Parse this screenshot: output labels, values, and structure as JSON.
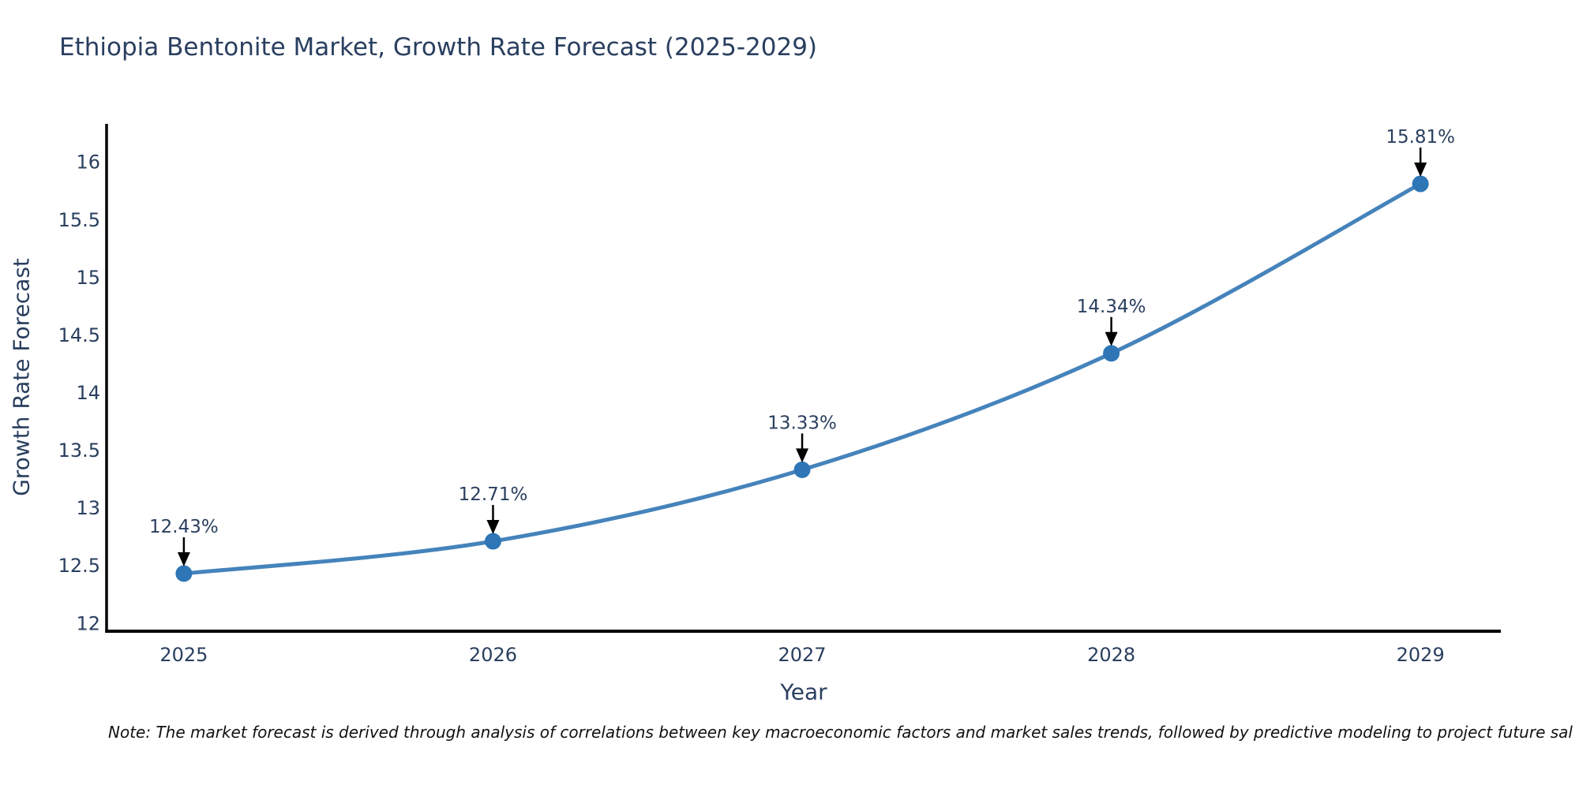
{
  "page": {
    "note": "Note: The market forecast is derived through analysis of correlations between key macroeconomic factors and market sales trends, followed by predictive modeling to project future sal"
  },
  "chart_data": {
    "type": "line",
    "title": "Ethiopia Bentonite Market, Growth Rate Forecast (2025-2029)",
    "xlabel": "Year",
    "ylabel": "Growth Rate Forecast",
    "x": [
      2025,
      2026,
      2027,
      2028,
      2029
    ],
    "y": [
      12.43,
      12.71,
      13.33,
      14.34,
      15.81
    ],
    "point_labels": [
      "12.43%",
      "12.71%",
      "13.33%",
      "14.34%",
      "15.81%"
    ],
    "xticks": [
      "2025",
      "2026",
      "2027",
      "2028",
      "2029"
    ],
    "yticks": [
      "12",
      "12.5",
      "13",
      "13.5",
      "14",
      "14.5",
      "15",
      "15.5",
      "16"
    ],
    "xlim": [
      2024.75,
      2029.26
    ],
    "ylim": [
      11.93,
      16.33
    ],
    "line_shape": "spline",
    "grid": false,
    "legend": "none",
    "annotation_style": "down-arrow-to-point",
    "colors": {
      "line": "#4583bb",
      "marker": "#2e76b6",
      "axis_line": "#000000",
      "text": "#2a3f5f",
      "annotation_arrow": "#000000",
      "note_text": "#111111"
    }
  }
}
